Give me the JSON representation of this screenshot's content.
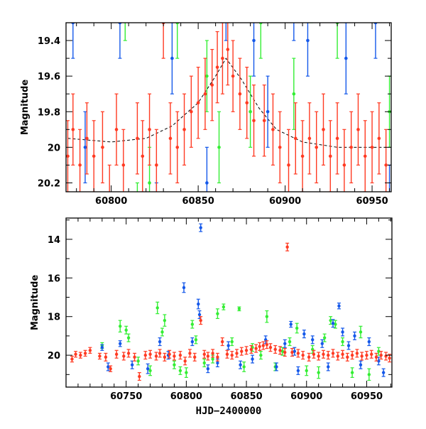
{
  "colors": {
    "red": "#ff3a22",
    "blue": "#1458ea",
    "green": "#33ee33",
    "model": "#000000"
  },
  "chart_data": [
    {
      "type": "scatter",
      "panel": "top",
      "title": "",
      "xlabel": "",
      "ylabel": "Magnitude",
      "xlim": [
        60774,
        60961
      ],
      "ylim": [
        20.25,
        19.3
      ],
      "y_inverted": true,
      "xticks": [
        "60800",
        "60850",
        "60900",
        "60950"
      ],
      "xtick_values": [
        60800,
        60850,
        60900,
        60950
      ],
      "yticks": [
        "19.4",
        "19.6",
        "19.8",
        "20",
        "20.2"
      ],
      "ytick_values": [
        19.4,
        19.6,
        19.8,
        20.0,
        20.2
      ],
      "x_minor_step": 10,
      "y_minor_step": 0.1,
      "grid": false,
      "legend": "none",
      "model": {
        "style": "dashed",
        "x": [
          60775,
          60800,
          60820,
          60835,
          60850,
          60860,
          60866,
          60875,
          60885,
          60895,
          60910,
          60930,
          60960
        ],
        "y": [
          19.95,
          19.97,
          19.95,
          19.88,
          19.75,
          19.6,
          19.5,
          19.62,
          19.78,
          19.9,
          19.97,
          20.0,
          20.0
        ]
      }
    },
    {
      "type": "scatter",
      "panel": "bottom",
      "title": "",
      "xlabel": "HJD−2400000",
      "ylabel": "Magnitude",
      "xlim": [
        60700,
        60971
      ],
      "ylim": [
        21.65,
        12.9
      ],
      "y_inverted": true,
      "xticks": [
        "60750",
        "60800",
        "60850",
        "60900",
        "60950"
      ],
      "xtick_values": [
        60750,
        60800,
        60850,
        60900,
        60950
      ],
      "yticks": [
        "14",
        "16",
        "18",
        "20"
      ],
      "ytick_values": [
        14,
        16,
        18,
        20
      ],
      "x_minor_step": 10,
      "y_minor_step": 1,
      "grid": false,
      "legend": "none"
    }
  ],
  "series": [
    {
      "name": "green",
      "points": [
        [
          60730,
          19.5,
          0.15
        ],
        [
          60745,
          18.5,
          0.3
        ],
        [
          60750,
          18.7,
          0.2
        ],
        [
          60752,
          19.1,
          0.2
        ],
        [
          60760,
          20.3,
          0.2
        ],
        [
          60770,
          20.8,
          0.25
        ],
        [
          60776,
          17.55,
          0.3
        ],
        [
          60780,
          18.8,
          0.2
        ],
        [
          60782,
          18.2,
          0.3
        ],
        [
          60790,
          20.5,
          0.2
        ],
        [
          60795,
          20.8,
          0.2
        ],
        [
          60800,
          20.9,
          0.25
        ],
        [
          60805,
          18.4,
          0.2
        ],
        [
          60808,
          19.2,
          0.2
        ],
        [
          60815,
          20.4,
          0.2
        ],
        [
          60822,
          20.2,
          0.2
        ],
        [
          60826,
          17.85,
          0.25
        ],
        [
          60831,
          17.5,
          0.15
        ],
        [
          60838,
          19.3,
          0.2
        ],
        [
          60844,
          17.6,
          0.1
        ],
        [
          60848,
          20.6,
          0.25
        ],
        [
          60855,
          19.6,
          0.2
        ],
        [
          60862,
          20.0,
          0.2
        ],
        [
          60867,
          18.0,
          0.3
        ],
        [
          60874,
          20.6,
          0.2
        ],
        [
          60880,
          19.8,
          0.2
        ],
        [
          60886,
          19.3,
          0.2
        ],
        [
          60892,
          18.6,
          0.25
        ],
        [
          60900,
          20.8,
          0.25
        ],
        [
          60905,
          19.7,
          0.2
        ],
        [
          60910,
          20.9,
          0.3
        ],
        [
          60915,
          19.1,
          0.2
        ],
        [
          60920,
          18.2,
          0.2
        ],
        [
          60924,
          18.4,
          0.2
        ],
        [
          60930,
          19.3,
          0.2
        ],
        [
          60938,
          20.9,
          0.25
        ],
        [
          60945,
          18.8,
          0.3
        ],
        [
          60952,
          21.0,
          0.3
        ],
        [
          60960,
          19.8,
          0.2
        ]
      ]
    },
    {
      "name": "blue",
      "points": [
        [
          60730,
          19.6,
          0.15
        ],
        [
          60735,
          20.6,
          0.2
        ],
        [
          60745,
          19.4,
          0.15
        ],
        [
          60755,
          20.5,
          0.2
        ],
        [
          60768,
          20.7,
          0.25
        ],
        [
          60778,
          19.3,
          0.2
        ],
        [
          60785,
          20.0,
          0.2
        ],
        [
          60798,
          16.5,
          0.25
        ],
        [
          60805,
          19.3,
          0.2
        ],
        [
          60810,
          17.35,
          0.25
        ],
        [
          60811,
          17.9,
          0.2
        ],
        [
          60812,
          13.4,
          0.2
        ],
        [
          60818,
          20.7,
          0.2
        ],
        [
          60826,
          20.4,
          0.2
        ],
        [
          60835,
          19.5,
          0.2
        ],
        [
          60845,
          20.5,
          0.2
        ],
        [
          60855,
          20.2,
          0.2
        ],
        [
          60866,
          19.2,
          0.2
        ],
        [
          60875,
          20.6,
          0.2
        ],
        [
          60882,
          19.4,
          0.2
        ],
        [
          60887,
          18.4,
          0.15
        ],
        [
          60890,
          19.8,
          0.2
        ],
        [
          60893,
          20.8,
          0.2
        ],
        [
          60898,
          18.9,
          0.2
        ],
        [
          60905,
          19.2,
          0.2
        ],
        [
          60913,
          19.4,
          0.2
        ],
        [
          60918,
          20.6,
          0.2
        ],
        [
          60922,
          18.35,
          0.2
        ],
        [
          60927,
          17.45,
          0.15
        ],
        [
          60930,
          18.8,
          0.2
        ],
        [
          60935,
          19.5,
          0.2
        ],
        [
          60940,
          19.0,
          0.2
        ],
        [
          60945,
          20.5,
          0.2
        ],
        [
          60952,
          19.3,
          0.2
        ],
        [
          60960,
          20.3,
          0.2
        ],
        [
          60964,
          20.9,
          0.2
        ]
      ]
    },
    {
      "name": "red",
      "points": [
        [
          60705,
          20.2,
          0.15
        ],
        [
          60708,
          19.95,
          0.15
        ],
        [
          60712,
          20.0,
          0.15
        ],
        [
          60716,
          19.9,
          0.15
        ],
        [
          60720,
          19.75,
          0.15
        ],
        [
          60728,
          20.05,
          0.15
        ],
        [
          60733,
          20.1,
          0.2
        ],
        [
          60737,
          20.7,
          0.15
        ],
        [
          60742,
          19.95,
          0.2
        ],
        [
          60748,
          20.05,
          0.2
        ],
        [
          60752,
          19.9,
          0.2
        ],
        [
          60757,
          20.1,
          0.2
        ],
        [
          60761,
          21.1,
          0.2
        ],
        [
          60766,
          20.0,
          0.2
        ],
        [
          60770,
          19.95,
          0.2
        ],
        [
          60775,
          20.05,
          0.2
        ],
        [
          60778,
          19.9,
          0.2
        ],
        [
          60782,
          20.1,
          0.2
        ],
        [
          60786,
          19.95,
          0.2
        ],
        [
          60790,
          20.05,
          0.2
        ],
        [
          60795,
          20.0,
          0.2
        ],
        [
          60799,
          20.3,
          0.2
        ],
        [
          60803,
          19.9,
          0.2
        ],
        [
          60807,
          20.1,
          0.2
        ],
        [
          60812,
          18.2,
          0.2
        ],
        [
          60815,
          19.95,
          0.2
        ],
        [
          60818,
          20.05,
          0.2
        ],
        [
          60822,
          19.9,
          0.2
        ],
        [
          60826,
          20.1,
          0.2
        ],
        [
          60830,
          19.3,
          0.2
        ],
        [
          60834,
          19.95,
          0.2
        ],
        [
          60838,
          20.0,
          0.2
        ],
        [
          60842,
          19.9,
          0.2
        ],
        [
          60846,
          19.8,
          0.2
        ],
        [
          60850,
          19.75,
          0.2
        ],
        [
          60854,
          19.7,
          0.2
        ],
        [
          60858,
          19.65,
          0.2
        ],
        [
          60861,
          19.55,
          0.2
        ],
        [
          60864,
          19.5,
          0.2
        ],
        [
          60867,
          19.45,
          0.2
        ],
        [
          60870,
          19.6,
          0.2
        ],
        [
          60874,
          19.7,
          0.2
        ],
        [
          60878,
          19.75,
          0.2
        ],
        [
          60882,
          19.85,
          0.2
        ],
        [
          60884,
          14.4,
          0.2
        ],
        [
          60888,
          19.85,
          0.2
        ],
        [
          60893,
          19.9,
          0.2
        ],
        [
          60897,
          20.0,
          0.2
        ],
        [
          60902,
          20.1,
          0.2
        ],
        [
          60906,
          19.95,
          0.2
        ],
        [
          60910,
          20.05,
          0.2
        ],
        [
          60914,
          19.95,
          0.2
        ],
        [
          60918,
          20.0,
          0.2
        ],
        [
          60922,
          19.9,
          0.2
        ],
        [
          60926,
          20.05,
          0.2
        ],
        [
          60930,
          19.95,
          0.2
        ],
        [
          60934,
          20.1,
          0.2
        ],
        [
          60938,
          20.0,
          0.2
        ],
        [
          60942,
          19.9,
          0.2
        ],
        [
          60946,
          20.05,
          0.2
        ],
        [
          60950,
          20.0,
          0.2
        ],
        [
          60954,
          19.95,
          0.2
        ],
        [
          60958,
          20.1,
          0.2
        ],
        [
          60962,
          20.0,
          0.2
        ],
        [
          60966,
          20.05,
          0.2
        ],
        [
          60969,
          20.15,
          0.2
        ]
      ]
    }
  ]
}
